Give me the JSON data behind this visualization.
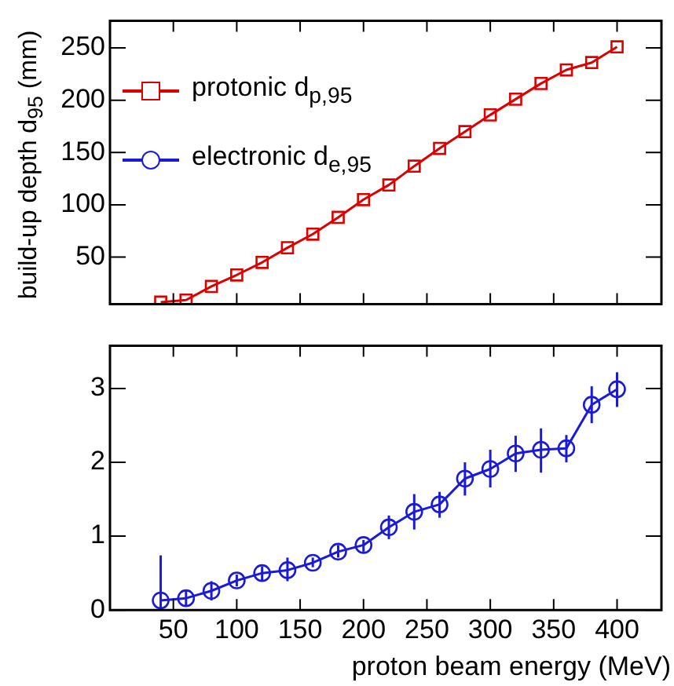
{
  "chart_data": [
    {
      "type": "line",
      "ylabel": "build-up depth d$_{95}$ (mm)",
      "legend": "top left",
      "marker": "square",
      "line_style": "solid",
      "grid": false,
      "tick_labels": "y",
      "x": [
        40,
        60,
        80,
        100,
        120,
        140,
        160,
        180,
        200,
        220,
        240,
        260,
        280,
        300,
        320,
        340,
        360,
        380,
        400
      ],
      "xlim": [
        0,
        435
      ],
      "xticks": [
        50,
        100,
        150,
        200,
        250,
        300,
        350,
        400
      ],
      "ylim": [
        5,
        276
      ],
      "yticks": [
        50,
        100,
        150,
        200,
        250
      ],
      "series": [
        {
          "name": "protonic d$_{p,95}$",
          "color": "#dd0000",
          "values": [
            7,
            9,
            22,
            33,
            45,
            59,
            72,
            88,
            105,
            119,
            137,
            154,
            170,
            186,
            201,
            216,
            229,
            236,
            251
          ]
        }
      ]
    },
    {
      "type": "line",
      "xlabel": "proton beam energy (MeV)",
      "legend": "top left",
      "marker": "circle",
      "line_style": "solid",
      "grid": false,
      "x": [
        40,
        60,
        80,
        100,
        120,
        140,
        160,
        180,
        200,
        220,
        240,
        260,
        280,
        300,
        320,
        340,
        360,
        380,
        400
      ],
      "xlim": [
        0,
        435
      ],
      "xticks": [
        50,
        100,
        150,
        200,
        250,
        300,
        350,
        400
      ],
      "ylim": [
        0,
        3.58
      ],
      "yticks": [
        0,
        1,
        2,
        3
      ],
      "series": [
        {
          "name": "electronic d$_{e,95}$",
          "color": "#1a1adb",
          "values": [
            0.13,
            0.16,
            0.26,
            0.4,
            0.5,
            0.54,
            0.64,
            0.79,
            0.88,
            1.12,
            1.33,
            1.43,
            1.78,
            1.91,
            2.12,
            2.17,
            2.19,
            2.78,
            2.99
          ],
          "errors": [
            [
              0,
              0.74
            ],
            [
              0.06,
              0.26
            ],
            [
              0.13,
              0.39
            ],
            [
              0.32,
              0.48
            ],
            [
              0.39,
              0.59
            ],
            [
              0.39,
              0.71
            ],
            [
              0.58,
              0.71
            ],
            [
              0.71,
              0.88
            ],
            [
              0.79,
              0.95
            ],
            [
              0.96,
              1.28
            ],
            [
              1.09,
              1.57
            ],
            [
              1.25,
              1.6
            ],
            [
              1.55,
              2.0
            ],
            [
              1.66,
              2.17
            ],
            [
              1.87,
              2.36
            ],
            [
              1.86,
              2.46
            ],
            [
              2.0,
              2.37
            ],
            [
              2.53,
              3.03
            ],
            [
              2.75,
              3.22
            ]
          ]
        }
      ]
    }
  ]
}
